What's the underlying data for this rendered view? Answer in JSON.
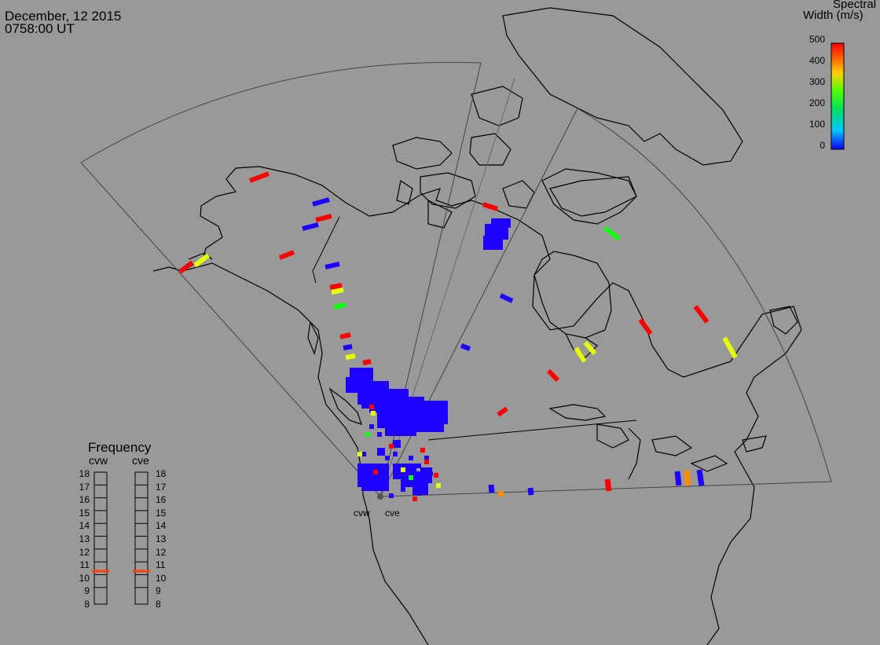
{
  "header": {
    "date": "December, 12 2015",
    "time": "0758:00 UT"
  },
  "colorbar": {
    "title_line1": "Spectral",
    "title_line2": "Width (m/s)",
    "ticks": [
      "500",
      "400",
      "300",
      "200",
      "100",
      "0"
    ],
    "min": 0,
    "max": 500
  },
  "frequency": {
    "title": "Frequency",
    "radars": [
      "cvw",
      "cve"
    ],
    "scale": [
      "18",
      "17",
      "16",
      "15",
      "14",
      "13",
      "12",
      "11",
      "10",
      "9",
      "8"
    ],
    "selected_mhz": 10.5,
    "marker_color": "#ff4400"
  },
  "radar_sites": [
    "cvw",
    "cve"
  ],
  "colors": {
    "background": "#999999",
    "blue": "#1e00ff",
    "red": "#ff0000",
    "yellow": "#e6ff00",
    "green": "#10ff10",
    "orange": "#ff8c00"
  }
}
